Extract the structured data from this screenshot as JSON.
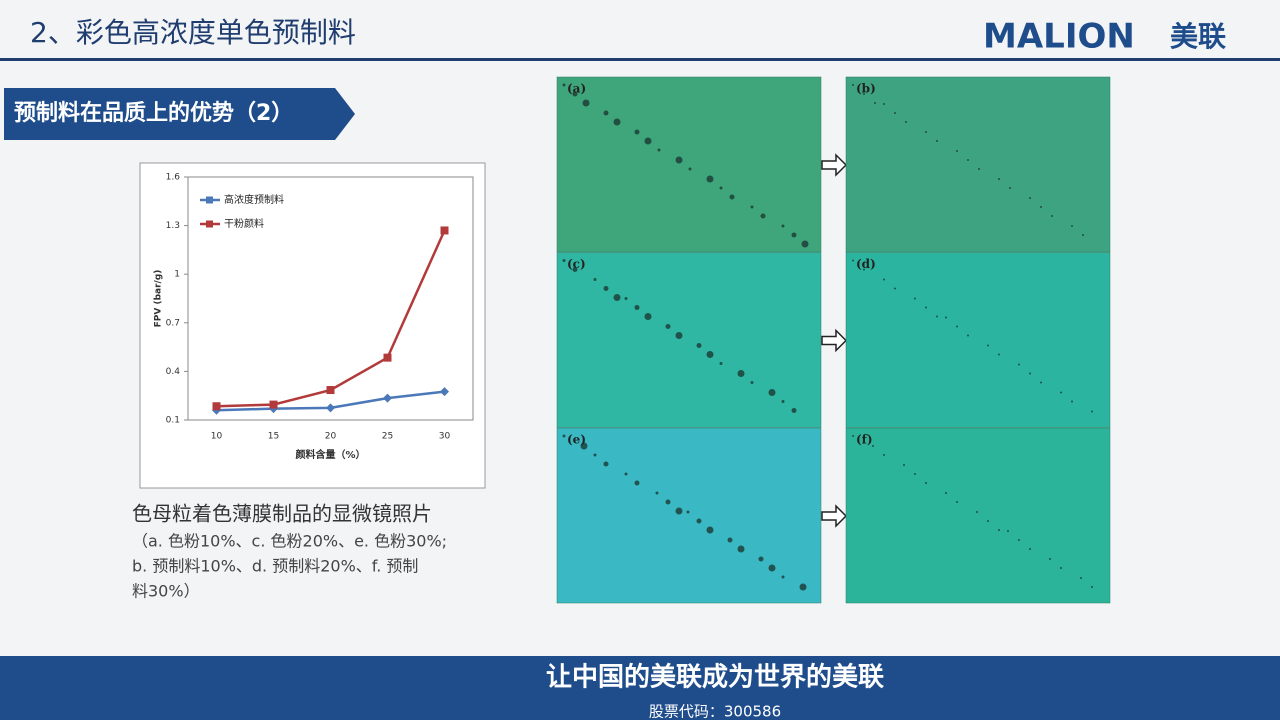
{
  "header": {
    "title": "2、彩色高浓度单色预制料",
    "logo_text": "MALION",
    "logo_cn": "美联"
  },
  "section_label": "预制料在品质上的优势（2）",
  "chart_data": {
    "type": "line",
    "x_label": "颜料含量（%）",
    "y_label": "FPV (bar/g)",
    "categories": [
      "10",
      "15",
      "20",
      "25",
      "30"
    ],
    "series": [
      {
        "name": "高浓度预制料",
        "color": "#4a78b8",
        "marker": "diamond",
        "values": [
          0.16,
          0.17,
          0.175,
          0.235,
          0.275
        ]
      },
      {
        "name": "干粉颜料",
        "color": "#b23a3a",
        "marker": "square",
        "values": [
          0.185,
          0.195,
          0.285,
          0.485,
          1.27
        ]
      }
    ],
    "ylim": [
      0.1,
      1.6
    ],
    "yticks": [
      0.1,
      0.4,
      0.7,
      1,
      1.3,
      1.6
    ],
    "legend": "upper-left"
  },
  "caption": {
    "title": "色母粒着色薄膜制品的显微镜照片",
    "lines": [
      "（a. 色粉10%、c. 色粉20%、e. 色粉30%;",
      "b. 预制料10%、d.  预制料20%、f.  预制",
      "料30%）"
    ]
  },
  "panels": [
    "(a)",
    "(b)",
    "(c)",
    "(d)",
    "(e)",
    "(f)"
  ],
  "footer": {
    "slogan": "让中国的美联成为世界的美联",
    "stock": "股票代码：300586"
  }
}
